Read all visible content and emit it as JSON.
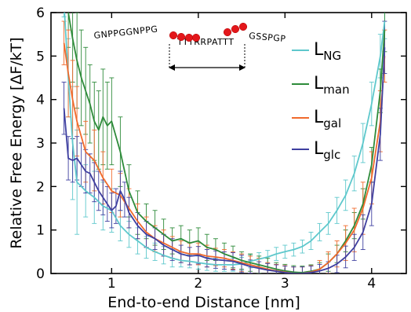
{
  "chart_data": {
    "type": "line",
    "xlabel": "End-to-end Distance [nm]",
    "ylabel": "Relative Free Energy [ΔF/kT]",
    "xlim": [
      0.3,
      4.4
    ],
    "ylim": [
      0,
      6
    ],
    "xticks": [
      1,
      2,
      3,
      4
    ],
    "yticks": [
      0,
      1,
      2,
      3,
      4,
      5,
      6
    ],
    "legend_position": "right",
    "legend_sub_labels": [
      "NG",
      "man",
      "gal",
      "glc"
    ],
    "colors": {
      "L_NG": "#5ec8cc",
      "L_man": "#2e8b3a",
      "L_gal": "#f06a2c",
      "L_glc": "#3e3fa0"
    },
    "inset": {
      "sequence_left": "GNPPGGNPPG",
      "sequence_middle": "TTTRRPATTT",
      "sequence_right": "GSSPGP",
      "bead_count": 7
    },
    "series": [
      {
        "name": "L_NG",
        "x": [
          0.45,
          0.5,
          0.55,
          0.6,
          0.7,
          0.8,
          0.9,
          1.0,
          1.1,
          1.2,
          1.3,
          1.4,
          1.5,
          1.6,
          1.7,
          1.8,
          1.9,
          2.0,
          2.1,
          2.2,
          2.3,
          2.4,
          2.5,
          2.6,
          2.7,
          2.8,
          2.9,
          3.0,
          3.1,
          3.2,
          3.3,
          3.4,
          3.5,
          3.6,
          3.7,
          3.8,
          3.9,
          4.0,
          4.1,
          4.15
        ],
        "y": [
          6.2,
          4.5,
          3.0,
          2.1,
          1.9,
          1.75,
          1.55,
          1.45,
          1.1,
          0.9,
          0.75,
          0.6,
          0.5,
          0.42,
          0.35,
          0.3,
          0.28,
          0.25,
          0.22,
          0.2,
          0.2,
          0.2,
          0.22,
          0.28,
          0.33,
          0.38,
          0.45,
          0.5,
          0.55,
          0.62,
          0.75,
          0.95,
          1.15,
          1.45,
          1.8,
          2.3,
          3.0,
          3.9,
          5.0,
          5.8
        ],
        "err": [
          0.3,
          0.9,
          1.3,
          1.2,
          0.6,
          0.6,
          0.55,
          0.5,
          0.35,
          0.3,
          0.3,
          0.25,
          0.2,
          0.2,
          0.2,
          0.15,
          0.15,
          0.15,
          0.15,
          0.15,
          0.15,
          0.15,
          0.15,
          0.15,
          0.15,
          0.15,
          0.15,
          0.15,
          0.15,
          0.15,
          0.2,
          0.2,
          0.25,
          0.3,
          0.35,
          0.4,
          0.45,
          0.5,
          0.5,
          0.4
        ]
      },
      {
        "name": "L_man",
        "x": [
          0.5,
          0.55,
          0.6,
          0.65,
          0.7,
          0.75,
          0.8,
          0.85,
          0.9,
          0.95,
          1.0,
          1.1,
          1.2,
          1.3,
          1.4,
          1.5,
          1.6,
          1.7,
          1.8,
          1.9,
          2.0,
          2.1,
          2.2,
          2.3,
          2.4,
          2.5,
          2.6,
          2.7,
          2.8,
          2.9,
          3.0,
          3.1,
          3.2,
          3.3,
          3.4,
          3.5,
          3.6,
          3.7,
          3.8,
          3.9,
          4.0,
          4.1,
          4.15
        ],
        "y": [
          6.0,
          5.4,
          4.9,
          4.5,
          4.2,
          3.9,
          3.5,
          3.3,
          3.6,
          3.4,
          3.5,
          2.8,
          1.9,
          1.4,
          1.2,
          1.05,
          0.9,
          0.75,
          0.8,
          0.7,
          0.75,
          0.6,
          0.55,
          0.45,
          0.38,
          0.3,
          0.25,
          0.2,
          0.15,
          0.1,
          0.06,
          0.03,
          0.02,
          0.05,
          0.1,
          0.25,
          0.45,
          0.75,
          1.1,
          1.6,
          2.5,
          4.2,
          5.6
        ],
        "err": [
          0.8,
          1.0,
          1.1,
          1.1,
          1.0,
          0.9,
          0.9,
          0.9,
          1.1,
          1.0,
          1.0,
          0.8,
          0.6,
          0.5,
          0.4,
          0.4,
          0.35,
          0.3,
          0.3,
          0.3,
          0.3,
          0.3,
          0.25,
          0.25,
          0.25,
          0.2,
          0.2,
          0.2,
          0.2,
          0.15,
          0.15,
          0.15,
          0.15,
          0.15,
          0.15,
          0.2,
          0.2,
          0.25,
          0.3,
          0.35,
          0.4,
          0.5,
          0.5
        ]
      },
      {
        "name": "L_gal",
        "x": [
          0.45,
          0.5,
          0.55,
          0.6,
          0.7,
          0.8,
          0.9,
          1.0,
          1.1,
          1.2,
          1.3,
          1.4,
          1.5,
          1.6,
          1.7,
          1.8,
          1.9,
          2.0,
          2.1,
          2.2,
          2.3,
          2.4,
          2.5,
          2.6,
          2.7,
          2.8,
          2.9,
          3.0,
          3.1,
          3.2,
          3.3,
          3.4,
          3.5,
          3.6,
          3.7,
          3.8,
          3.9,
          4.0,
          4.1,
          4.15
        ],
        "y": [
          5.3,
          4.6,
          4.0,
          3.5,
          2.8,
          2.6,
          2.2,
          1.9,
          1.8,
          1.5,
          1.2,
          0.95,
          0.8,
          0.7,
          0.6,
          0.5,
          0.45,
          0.45,
          0.4,
          0.38,
          0.35,
          0.3,
          0.25,
          0.2,
          0.15,
          0.1,
          0.06,
          0.03,
          0.0,
          0.0,
          0.03,
          0.1,
          0.25,
          0.45,
          0.7,
          1.0,
          1.5,
          2.2,
          3.5,
          5.0
        ],
        "err": [
          0.5,
          1.0,
          0.9,
          0.8,
          0.7,
          0.7,
          0.6,
          0.5,
          0.5,
          0.45,
          0.4,
          0.35,
          0.3,
          0.3,
          0.25,
          0.25,
          0.25,
          0.25,
          0.25,
          0.2,
          0.2,
          0.2,
          0.2,
          0.2,
          0.2,
          0.15,
          0.15,
          0.15,
          0.15,
          0.15,
          0.15,
          0.2,
          0.25,
          0.3,
          0.4,
          0.5,
          0.6,
          0.6,
          0.7,
          0.6
        ]
      },
      {
        "name": "L_glc",
        "x": [
          0.45,
          0.5,
          0.55,
          0.6,
          0.65,
          0.7,
          0.75,
          0.8,
          0.85,
          0.9,
          0.95,
          1.0,
          1.05,
          1.1,
          1.15,
          1.2,
          1.3,
          1.4,
          1.5,
          1.6,
          1.7,
          1.8,
          1.9,
          2.0,
          2.1,
          2.2,
          2.3,
          2.4,
          2.5,
          2.6,
          2.7,
          2.8,
          2.9,
          3.0,
          3.1,
          3.2,
          3.3,
          3.4,
          3.5,
          3.6,
          3.7,
          3.8,
          3.9,
          4.0,
          4.1,
          4.15
        ],
        "y": [
          3.8,
          2.65,
          2.6,
          2.65,
          2.5,
          2.35,
          2.3,
          2.1,
          1.9,
          1.75,
          1.6,
          1.45,
          1.55,
          1.9,
          1.7,
          1.4,
          1.1,
          0.9,
          0.8,
          0.65,
          0.55,
          0.45,
          0.4,
          0.42,
          0.35,
          0.32,
          0.3,
          0.28,
          0.22,
          0.16,
          0.12,
          0.08,
          0.05,
          0.02,
          0.0,
          0.0,
          0.02,
          0.06,
          0.12,
          0.22,
          0.38,
          0.6,
          0.95,
          1.6,
          3.2,
          5.2
        ],
        "err": [
          0.6,
          0.5,
          0.5,
          0.5,
          0.5,
          0.5,
          0.45,
          0.45,
          0.45,
          0.4,
          0.4,
          0.4,
          0.4,
          0.45,
          0.4,
          0.35,
          0.3,
          0.3,
          0.25,
          0.25,
          0.25,
          0.2,
          0.2,
          0.2,
          0.2,
          0.2,
          0.2,
          0.2,
          0.2,
          0.15,
          0.15,
          0.15,
          0.15,
          0.15,
          0.15,
          0.15,
          0.15,
          0.15,
          0.15,
          0.2,
          0.25,
          0.3,
          0.4,
          0.5,
          0.6,
          0.6
        ]
      }
    ]
  }
}
